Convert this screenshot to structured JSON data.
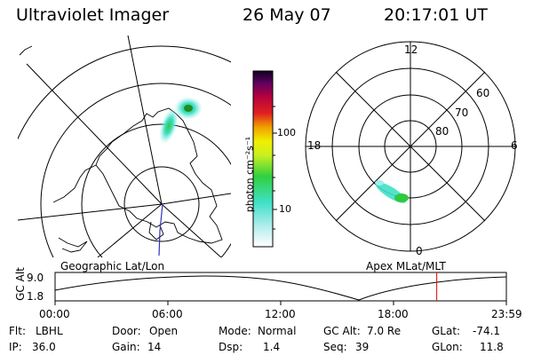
{
  "header": {
    "instrument": "Ultraviolet Imager",
    "date": "26 May 07",
    "time": "20:17:01 UT"
  },
  "geo_panel": {
    "label": "Geographic Lat/Lon"
  },
  "colorbar": {
    "unit_label": "photon cm⁻²s⁻¹",
    "ticks": [
      "100",
      "10"
    ],
    "scale": "log"
  },
  "polar_panel": {
    "label": "Apex MLat/MLT",
    "mlt_labels": {
      "top": "12",
      "left": "18",
      "right": "6",
      "bottom": "0"
    },
    "lat_labels": [
      "60",
      "70",
      "80"
    ]
  },
  "altitude_plot": {
    "ylabel": "GC Alt",
    "yticks": [
      "9.0",
      "1.8"
    ],
    "xticks": [
      "00:00",
      "06:00",
      "12:00",
      "18:00",
      "23:59"
    ],
    "current_time_marker": "20:17",
    "marker_color": "#e00000"
  },
  "status": {
    "filter": {
      "label": "Flt:",
      "value": "LBHL"
    },
    "ip": {
      "label": "IP:",
      "value": "36.0"
    },
    "door": {
      "label": "Door:",
      "value": "Open"
    },
    "gain": {
      "label": "Gain:",
      "value": "14"
    },
    "mode": {
      "label": "Mode:",
      "value": "Normal"
    },
    "dsp": {
      "label": "Dsp:",
      "value": "1.4"
    },
    "gc_alt": {
      "label": "GC Alt:",
      "value": "7.0 Re"
    },
    "seq": {
      "label": "Seq:",
      "value": "39"
    },
    "glat": {
      "label": "GLat:",
      "value": "-74.1"
    },
    "glon": {
      "label": "GLon:",
      "value": "11.8"
    }
  }
}
